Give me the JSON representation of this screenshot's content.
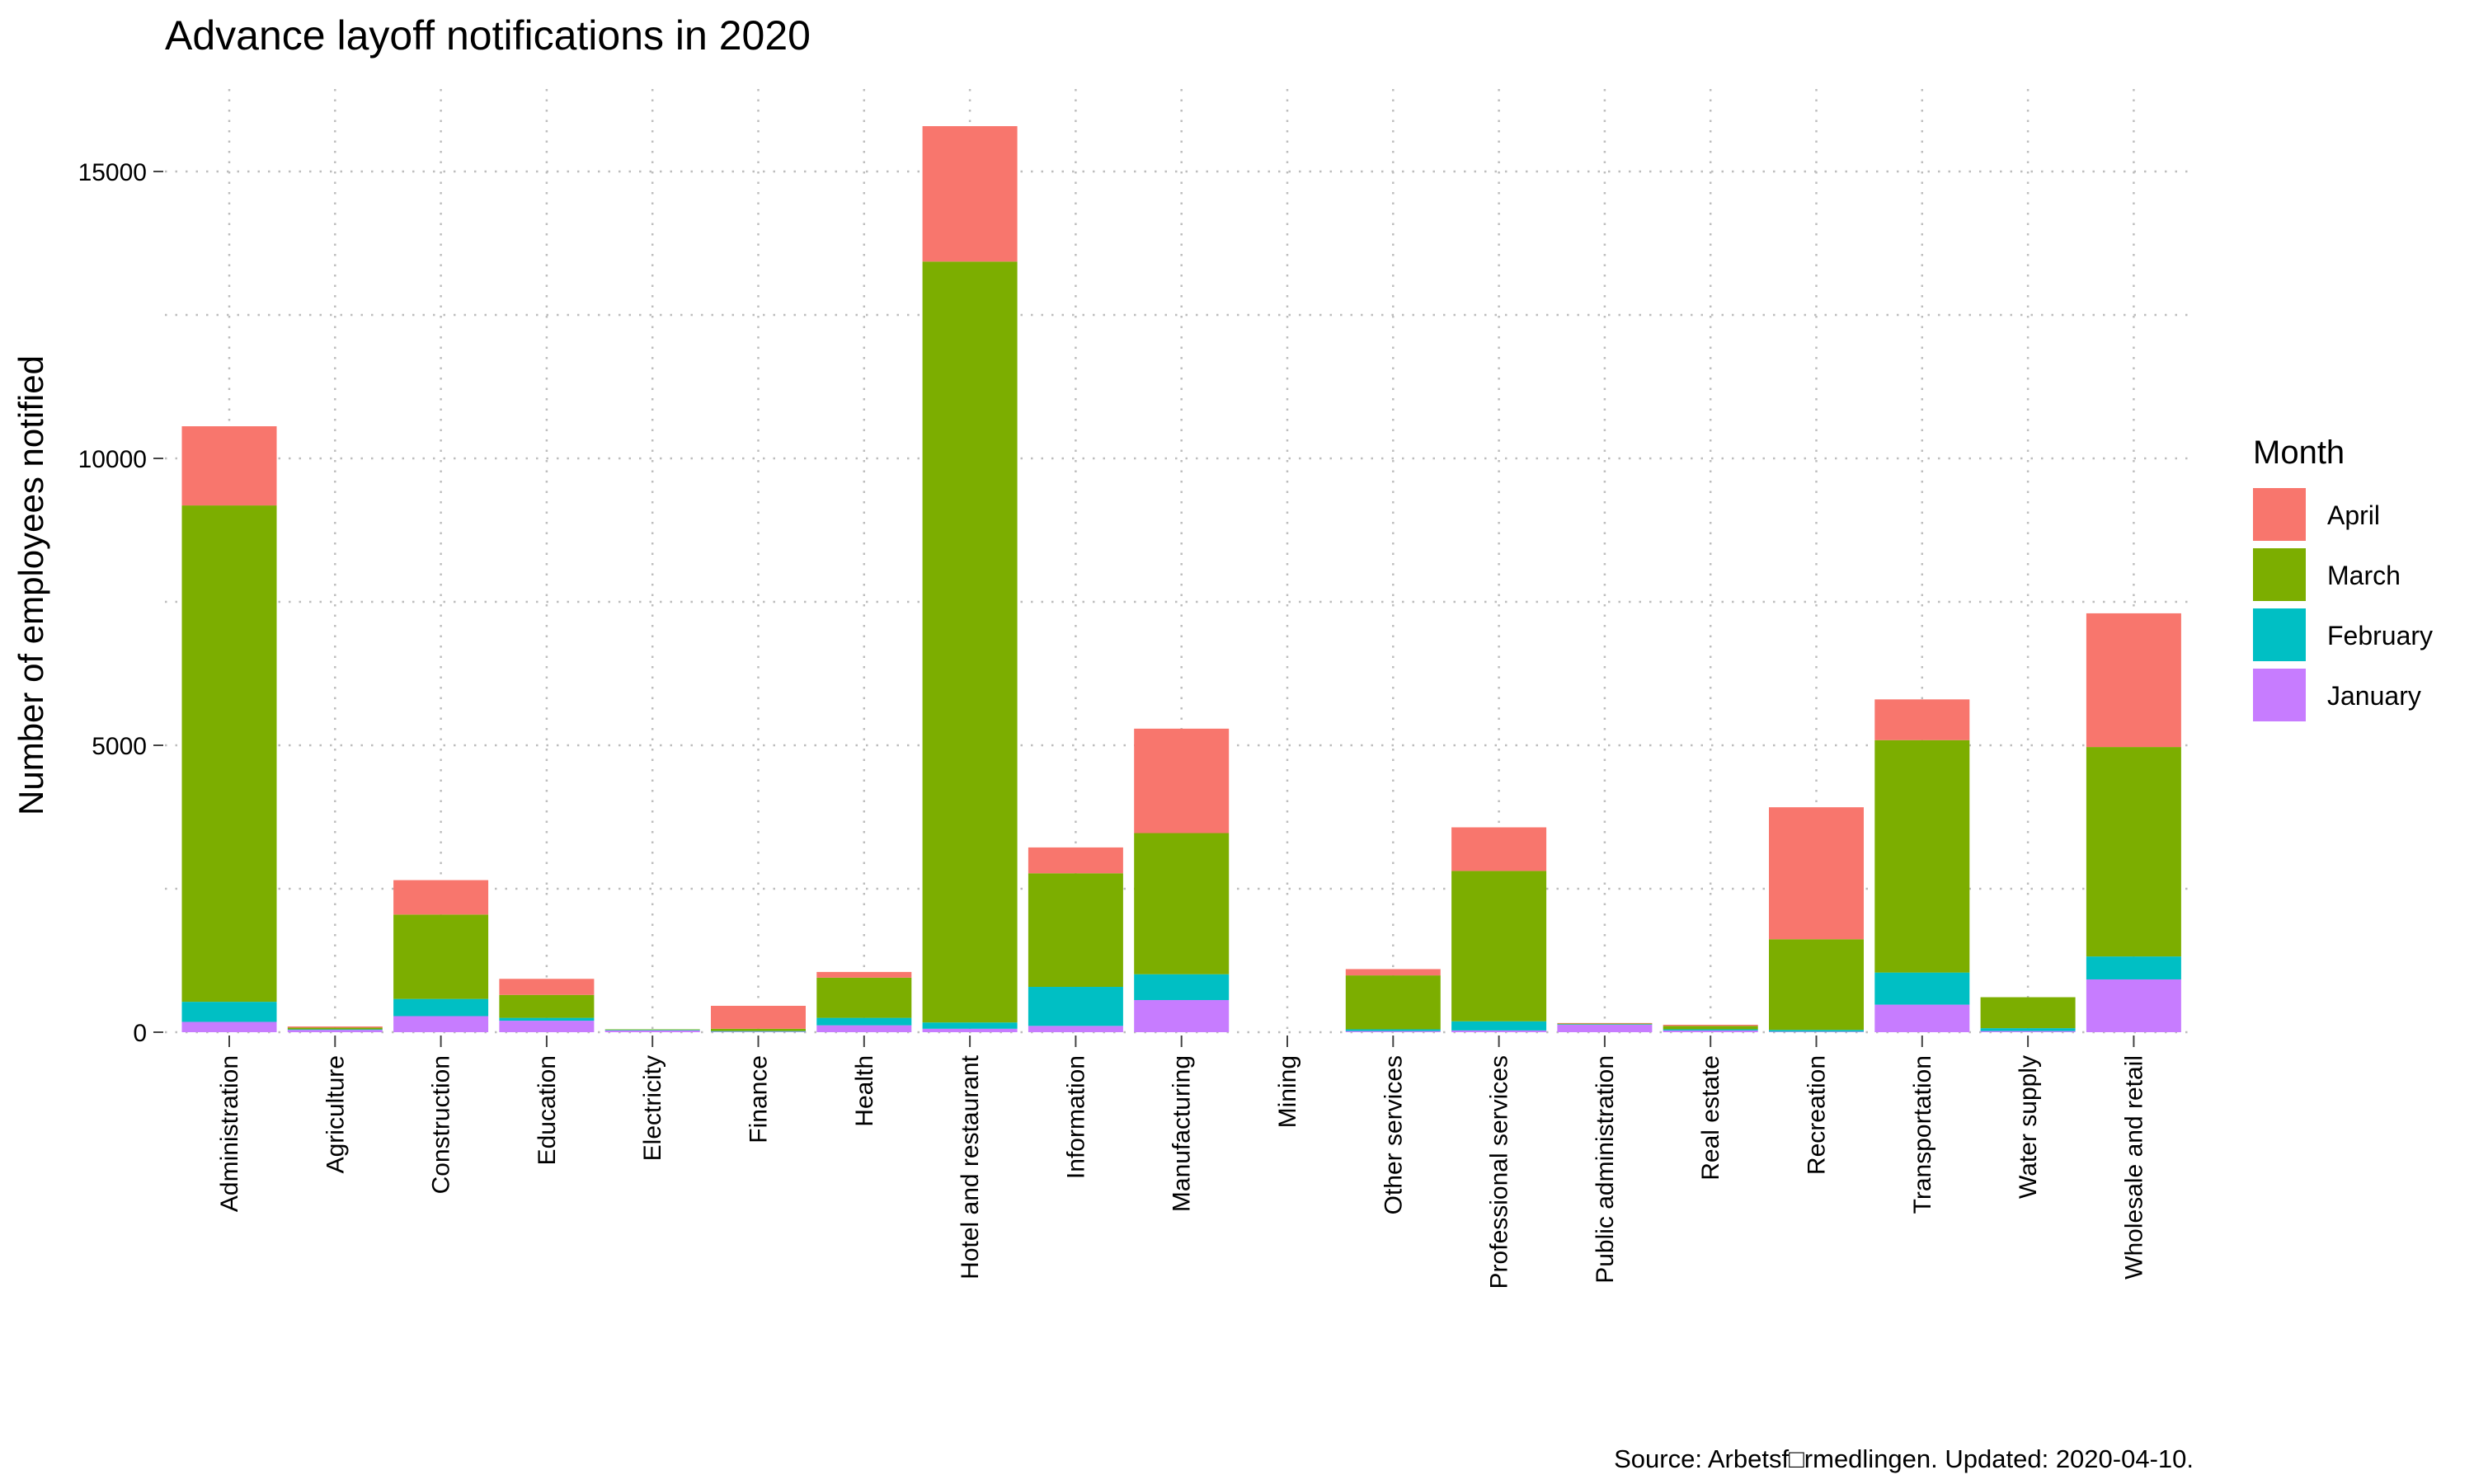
{
  "chart_data": {
    "type": "bar",
    "stacked": true,
    "title": "Advance layoff notifications in 2020",
    "ylabel": "Number of employees notified",
    "xlabel": "",
    "ylim": [
      0,
      16500
    ],
    "yticks": [
      0,
      5000,
      10000,
      15000
    ],
    "grid": true,
    "legend": {
      "title": "Month",
      "position": "right"
    },
    "caption": "Source: Arbetsf□rmedlingen. Updated: 2020-04-10.",
    "categories": [
      "Administration",
      "Agriculture",
      "Construction",
      "Education",
      "Electricity",
      "Finance",
      "Health",
      "Hotel and restaurant",
      "Information",
      "Manufacturing",
      "Mining",
      "Other services",
      "Professional services",
      "Public administration",
      "Real estate",
      "Recreation",
      "Transportation",
      "Water supply",
      "Wholesale and retail"
    ],
    "series": [
      {
        "name": "January",
        "color": "#C77CFF",
        "values": [
          180,
          40,
          280,
          200,
          30,
          10,
          120,
          60,
          110,
          560,
          0,
          20,
          30,
          130,
          30,
          10,
          480,
          20,
          920
        ]
      },
      {
        "name": "February",
        "color": "#00BFC4",
        "values": [
          350,
          10,
          300,
          50,
          10,
          10,
          130,
          110,
          680,
          450,
          0,
          30,
          160,
          10,
          20,
          30,
          560,
          50,
          400
        ]
      },
      {
        "name": "March",
        "color": "#7CAE00",
        "values": [
          8650,
          30,
          1470,
          400,
          10,
          40,
          700,
          13260,
          1980,
          2460,
          0,
          940,
          2620,
          10,
          60,
          1580,
          4050,
          540,
          3650
        ]
      },
      {
        "name": "April",
        "color": "#F8766D",
        "values": [
          1380,
          20,
          600,
          280,
          0,
          400,
          100,
          2360,
          450,
          1820,
          0,
          110,
          760,
          10,
          20,
          2300,
          710,
          0,
          2330
        ]
      }
    ]
  }
}
